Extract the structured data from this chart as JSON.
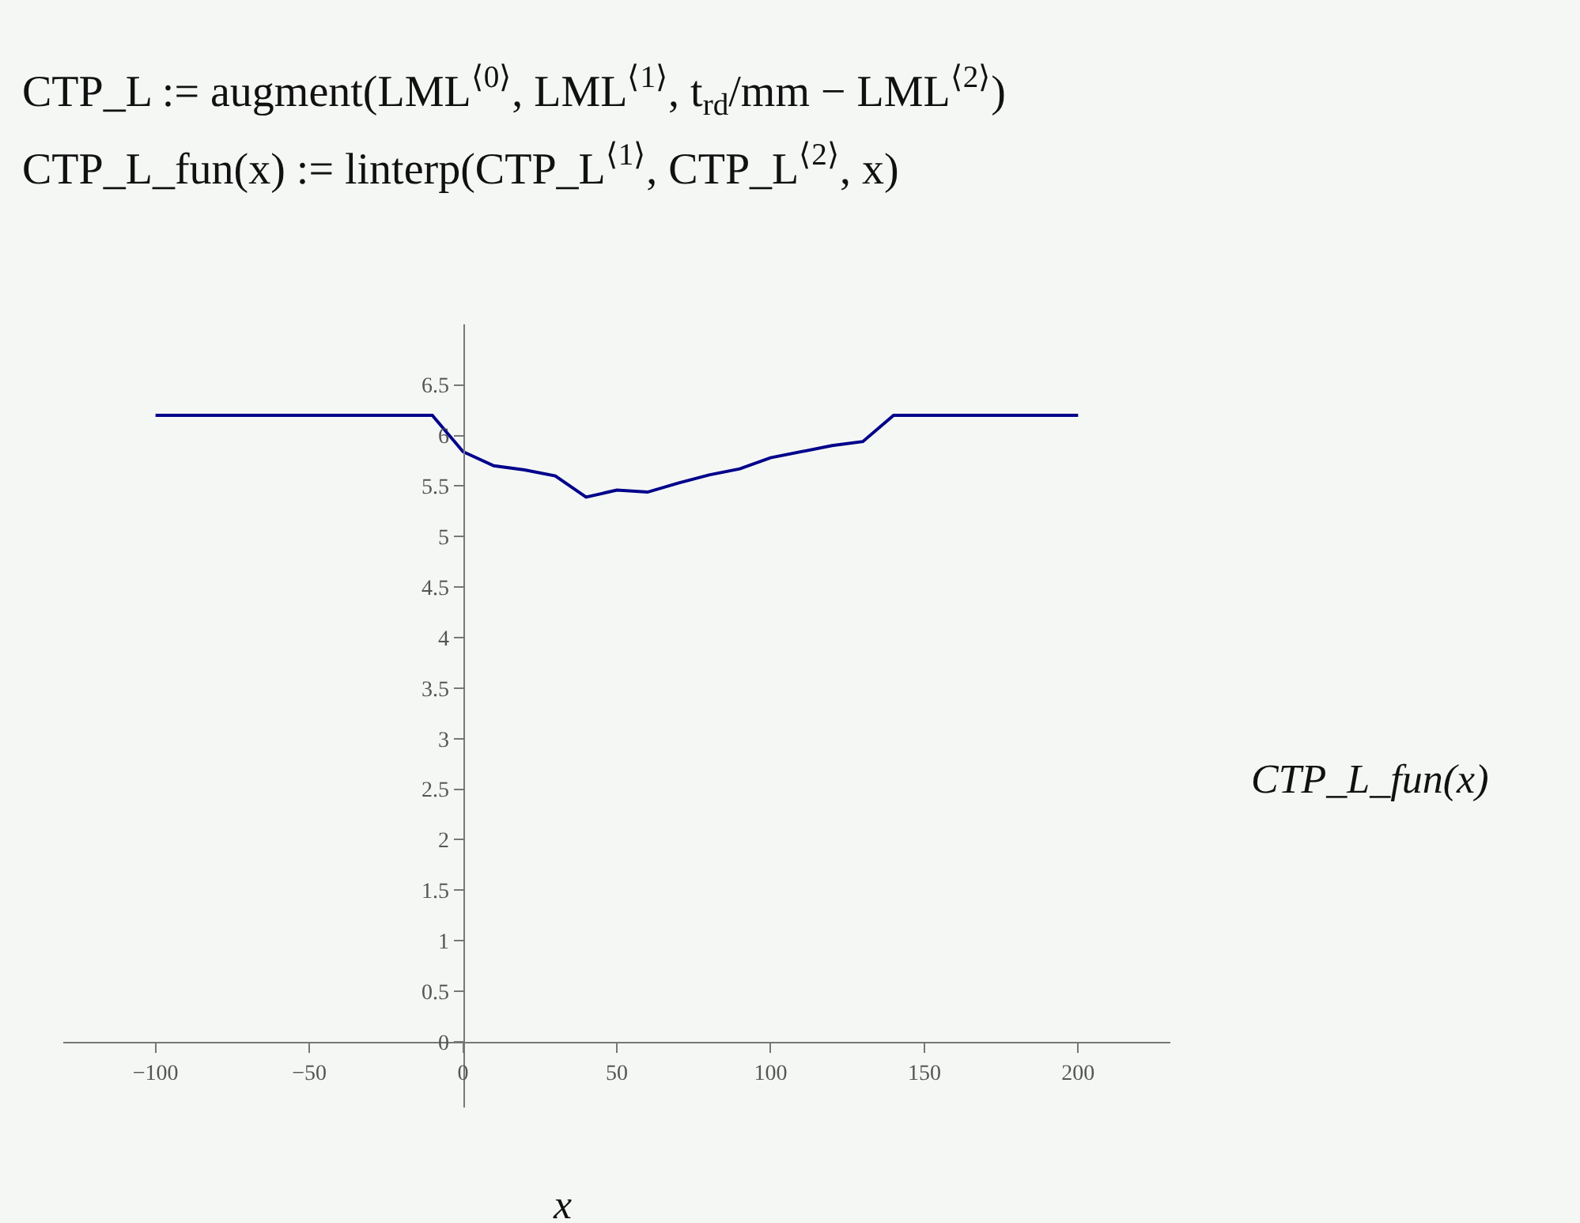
{
  "chart_data": {
    "type": "line",
    "xlabel": "x",
    "ylabel": "CTP_L_fun(x)",
    "annotations": [
      "CTP_L := augment(LML$^{⟨0⟩}$, LML$^{⟨1⟩}$, t$_{rd}$/mm − LML$^{⟨2⟩}$)",
      "CTP_L_fun(x) := linterp(CTP_L$^{⟨1⟩}$, CTP_L$^{⟨2⟩}$, x)"
    ],
    "series": [
      {
        "color": "#00008b",
        "x": [
          -100,
          -10,
          0,
          10,
          20,
          30,
          40,
          50,
          60,
          70,
          80,
          90,
          100,
          120,
          130,
          140,
          200
        ],
        "values": [
          6.2,
          6.2,
          5.84,
          5.7,
          5.66,
          5.6,
          5.39,
          5.46,
          5.44,
          5.53,
          5.61,
          5.67,
          5.78,
          5.9,
          5.94,
          6.2,
          6.2
        ]
      }
    ],
    "xlim": [
      -130,
      230
    ],
    "ylim": [
      -0.65,
      7.1
    ],
    "xticks": [
      -100,
      -50,
      0,
      50,
      100,
      150,
      200
    ],
    "yticks": [
      0,
      0.5,
      1,
      1.5,
      2,
      2.5,
      3,
      3.5,
      4,
      4.5,
      5,
      5.5,
      6,
      6.5
    ],
    "grid": false,
    "legend": false,
    "marker": "none",
    "line_style": "solid"
  }
}
